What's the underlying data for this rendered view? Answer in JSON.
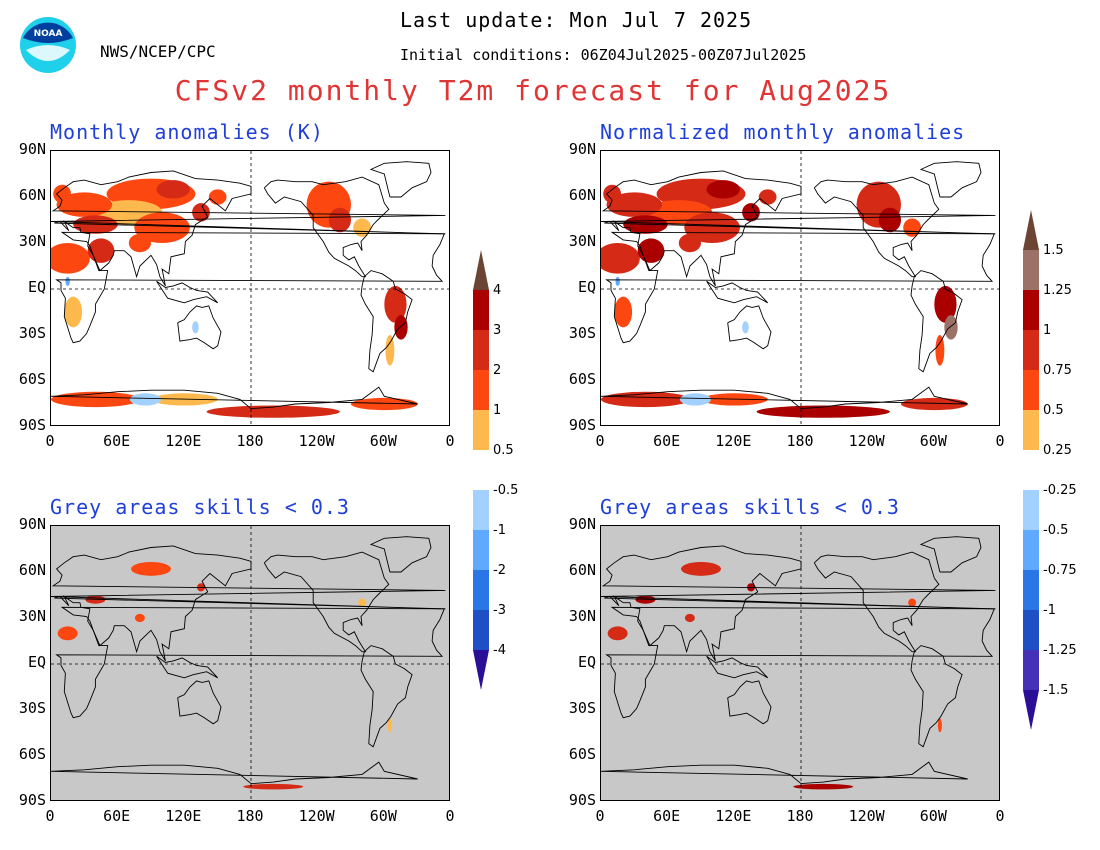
{
  "header": {
    "org": "NWS/NCEP/CPC",
    "last_update": "Last update: Mon Jul 7 2025",
    "initial_conditions": "Initial conditions: 06Z04Jul2025-00Z07Jul2025",
    "title": "CFSv2 monthly T2m forecast for Aug2025",
    "logo_text": "NOAA"
  },
  "panels": [
    {
      "title": "Monthly anomalies (K)",
      "grey_masked": false
    },
    {
      "title": "Normalized monthly anomalies",
      "grey_masked": false
    },
    {
      "title": "Grey areas skills < 0.3",
      "grey_masked": true
    },
    {
      "title": "Grey areas skills < 0.3",
      "grey_masked": true
    }
  ],
  "axes": {
    "lat_ticks": [
      "90N",
      "60N",
      "30N",
      "EQ",
      "30S",
      "60S",
      "90S"
    ],
    "lon_ticks": [
      "0",
      "60E",
      "120E",
      "180",
      "120W",
      "60W",
      "0"
    ]
  },
  "colorbars": [
    {
      "name": "anomaly-K",
      "upper_labels": [
        "4",
        "3",
        "2",
        "1",
        "0.5"
      ],
      "lower_labels": [
        "-0.5",
        "-1",
        "-2",
        "-3",
        "-4"
      ]
    },
    {
      "name": "normalized",
      "upper_labels": [
        "1.5",
        "1.25",
        "1",
        "0.75",
        "0.5",
        "0.25"
      ],
      "lower_labels": [
        "-0.25",
        "-0.5",
        "-0.75",
        "-1",
        "-1.25",
        "-1.5"
      ]
    }
  ],
  "colors": {
    "title_red": "#e03535",
    "panel_title_blue": "#1f3fd8",
    "grey_mask": "#c8c8c8",
    "warm_scale": [
      "#fdb94e",
      "#fd4711",
      "#d42a16",
      "#aa0000",
      "#9c7268",
      "#6b4434"
    ],
    "cold_scale": [
      "#a3d1ff",
      "#5fa9ff",
      "#2b76e6",
      "#1e4fc4",
      "#4531b8",
      "#2b0f97"
    ]
  }
}
